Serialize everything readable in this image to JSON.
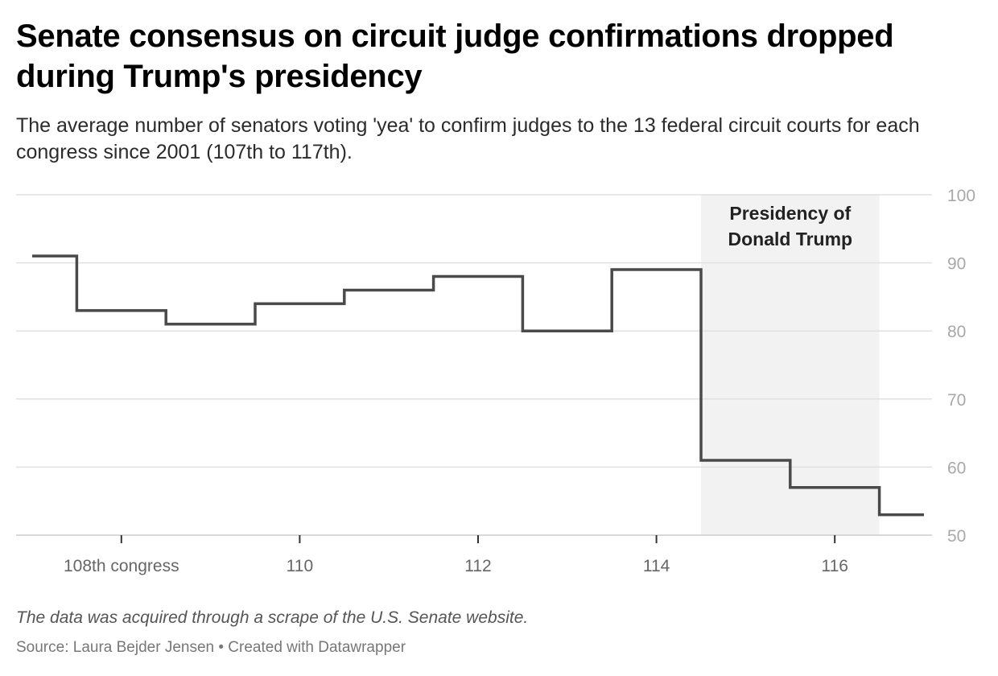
{
  "title": "Senate consensus on circuit judge confirmations dropped during Trump's presidency",
  "subtitle": "The average number of senators voting 'yea' to confirm judges to the 13 federal circuit courts for each congress since 2001 (107th to 117th).",
  "note": "The data was acquired through a scrape of the U.S. Senate website.",
  "source": "Source: Laura Bejder Jensen • Created with Datawrapper",
  "colors": {
    "line": "#4a4a4a",
    "shade": "#f2f2f2",
    "grid": "#e0e0e0",
    "tick_text": "#a8a8a8",
    "xtick_text": "#666666"
  },
  "chart_data": {
    "type": "line",
    "step": true,
    "x": [
      107,
      108,
      109,
      110,
      111,
      112,
      113,
      114,
      115,
      116,
      117
    ],
    "values": [
      91,
      83,
      81,
      84,
      86,
      88,
      80,
      89,
      61,
      57,
      53
    ],
    "xlim": [
      107,
      117
    ],
    "ylim": [
      50,
      100
    ],
    "yticks": [
      50,
      60,
      70,
      80,
      90,
      100
    ],
    "ytick_labels": [
      "50",
      "60",
      "70",
      "80",
      "90",
      "100"
    ],
    "xticks": [
      108,
      110,
      112,
      114,
      116
    ],
    "xtick_labels": [
      "108th congress",
      "110",
      "112",
      "114",
      "116"
    ],
    "grid": true,
    "y_axis_position": "right",
    "annotation": {
      "label_lines": [
        "Presidency of",
        "Donald Trump"
      ],
      "x_range": [
        114.5,
        116.5
      ]
    }
  }
}
